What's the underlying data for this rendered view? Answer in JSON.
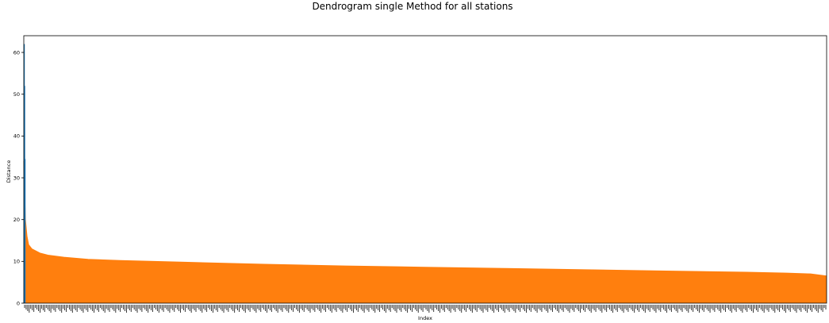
{
  "chart_data": {
    "type": "dendrogram",
    "title": "Dendrogram single Method for all stations",
    "xlabel": "Index",
    "ylabel": "Distance",
    "ylim": [
      0,
      64
    ],
    "yticks": [
      0,
      10,
      20,
      30,
      40,
      50,
      60
    ],
    "colors": {
      "cluster": "#ff7f0e",
      "top_links": "#1f77b4",
      "axes": "#000000"
    },
    "top_links": [
      {
        "height": 62,
        "color": "#1f77b4"
      },
      {
        "height": 52,
        "color": "#1f77b4"
      },
      {
        "height": 34.5,
        "color": "#1f77b4"
      }
    ],
    "cluster_profile": {
      "x_fraction": [
        0,
        0.002,
        0.004,
        0.006,
        0.01,
        0.015,
        0.02,
        0.03,
        0.05,
        0.08,
        0.12,
        0.2,
        0.3,
        0.4,
        0.5,
        0.6,
        0.7,
        0.8,
        0.9,
        0.95,
        0.98,
        1.0
      ],
      "distance": [
        34,
        20,
        16,
        14,
        13,
        12.5,
        12,
        11.5,
        11,
        10.5,
        10.2,
        9.8,
        9.3,
        8.9,
        8.6,
        8.3,
        8.0,
        7.7,
        7.4,
        7.2,
        7.0,
        6.5
      ]
    },
    "grid": false,
    "legend": "none"
  }
}
